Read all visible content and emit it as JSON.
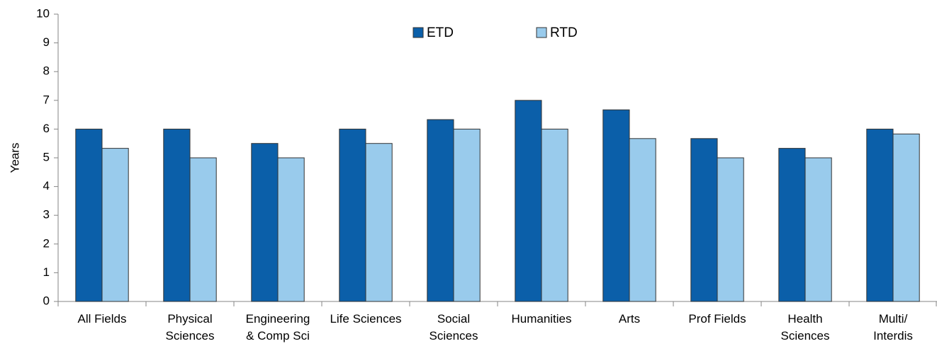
{
  "chart_data": {
    "type": "bar",
    "y_label": "Years",
    "categories": [
      "All Fields",
      "Physical\nSciences",
      "Engineering\n& Comp Sci",
      "Life Sciences",
      "Social\nSciences",
      "Humanities",
      "Arts",
      "Prof Fields",
      "Health\nSciences",
      "Multi/\nInterdis"
    ],
    "series": [
      {
        "name": "ETD",
        "color": "#0b5fa9",
        "values": [
          6,
          6,
          5.5,
          6,
          6.33,
          7,
          6.67,
          5.67,
          5.33,
          6
        ]
      },
      {
        "name": "RTD",
        "color": "#99cbec",
        "values": [
          5.33,
          5,
          5,
          5.5,
          6,
          6,
          5.67,
          5,
          5,
          5.83
        ]
      }
    ],
    "ylim": [
      0,
      10
    ],
    "yticks": [
      0,
      1,
      2,
      3,
      4,
      5,
      6,
      7,
      8,
      9,
      10
    ],
    "legend": "top"
  }
}
